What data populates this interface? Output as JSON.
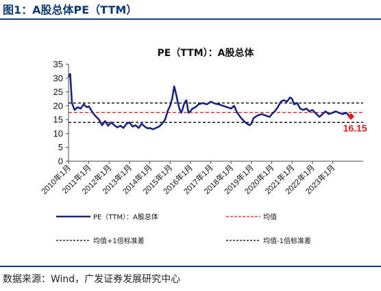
{
  "figure_title": "图1：A股总体PE（TTM）",
  "source_note": "数据来源：Wind，广发证券发展研究中心",
  "colors": {
    "series": "#1a237e",
    "mean": "#e31a1c",
    "band": "#000000",
    "rule": "#0f3a75"
  },
  "chart_data": {
    "type": "line",
    "title": "PE（TTM）：A股总体",
    "xlabel": "",
    "ylabel": "",
    "ylim": [
      0,
      35
    ],
    "yticks": [
      0,
      5,
      10,
      15,
      20,
      25,
      30,
      35
    ],
    "xticks": [
      "2010年1月",
      "2011年1月",
      "2012年1月",
      "2013年1月",
      "2014年1月",
      "2015年1月",
      "2016年1月",
      "2017年1月",
      "2018年1月",
      "2019年1月",
      "2020年1月",
      "2021年1月",
      "2022年1月",
      "2023年1月"
    ],
    "grid": false,
    "legend_position": "bottom",
    "series": [
      {
        "name": "PE（TTM）：A股总体",
        "x": [
          2010.0,
          2010.08,
          2010.17,
          2010.3,
          2010.45,
          2010.6,
          2010.75,
          2010.9,
          2011.0,
          2011.15,
          2011.3,
          2011.5,
          2011.65,
          2011.8,
          2011.95,
          2012.1,
          2012.25,
          2012.4,
          2012.55,
          2012.7,
          2012.85,
          2013.0,
          2013.15,
          2013.3,
          2013.45,
          2013.6,
          2013.75,
          2013.9,
          2014.0,
          2014.15,
          2014.3,
          2014.45,
          2014.6,
          2014.75,
          2014.9,
          2015.0,
          2015.1,
          2015.2,
          2015.3,
          2015.4,
          2015.48,
          2015.55,
          2015.62,
          2015.7,
          2015.8,
          2015.9,
          2016.0,
          2016.1,
          2016.25,
          2016.4,
          2016.6,
          2016.8,
          2017.0,
          2017.2,
          2017.4,
          2017.6,
          2017.8,
          2018.0,
          2018.15,
          2018.3,
          2018.5,
          2018.7,
          2018.9,
          2019.0,
          2019.1,
          2019.3,
          2019.5,
          2019.7,
          2019.9,
          2020.0,
          2020.15,
          2020.3,
          2020.45,
          2020.6,
          2020.75,
          2020.9,
          2021.0,
          2021.1,
          2021.25,
          2021.4,
          2021.55,
          2021.7,
          2021.85,
          2022.0,
          2022.2,
          2022.35,
          2022.5,
          2022.65,
          2022.8,
          2023.0,
          2023.15,
          2023.3,
          2023.5,
          2023.65,
          2023.8,
          2023.9
        ],
        "values": [
          30.5,
          31.5,
          21.0,
          18.5,
          19.5,
          19.0,
          20.5,
          19.5,
          19.8,
          18.0,
          16.5,
          15.0,
          13.0,
          14.5,
          12.8,
          14.0,
          13.0,
          12.2,
          12.8,
          12.0,
          13.5,
          14.0,
          12.5,
          13.0,
          12.0,
          13.5,
          12.5,
          11.8,
          12.0,
          11.5,
          12.0,
          12.5,
          13.5,
          15.0,
          18.5,
          20.0,
          22.5,
          27.0,
          24.0,
          20.5,
          18.5,
          17.5,
          19.0,
          21.0,
          22.0,
          17.5,
          18.0,
          19.0,
          19.5,
          20.5,
          21.0,
          20.5,
          21.5,
          20.8,
          20.5,
          20.0,
          19.5,
          19.0,
          20.0,
          17.5,
          15.5,
          14.0,
          13.0,
          13.5,
          15.5,
          16.5,
          17.0,
          16.5,
          16.0,
          17.0,
          18.0,
          19.5,
          21.5,
          22.0,
          21.5,
          23.0,
          22.5,
          20.5,
          21.0,
          19.0,
          18.5,
          19.0,
          18.0,
          18.5,
          17.0,
          16.0,
          17.0,
          18.0,
          17.0,
          17.5,
          18.0,
          17.5,
          17.0,
          17.5,
          16.5,
          16.15
        ]
      },
      {
        "name": "均值",
        "value": 17.6
      },
      {
        "name": "均值+1倍标准差",
        "value": 21.0
      },
      {
        "name": "均值-1倍标准差",
        "value": 14.0
      }
    ],
    "annotations": [
      {
        "text": "16.15",
        "x": 2023.9,
        "y": 16.15
      }
    ]
  }
}
